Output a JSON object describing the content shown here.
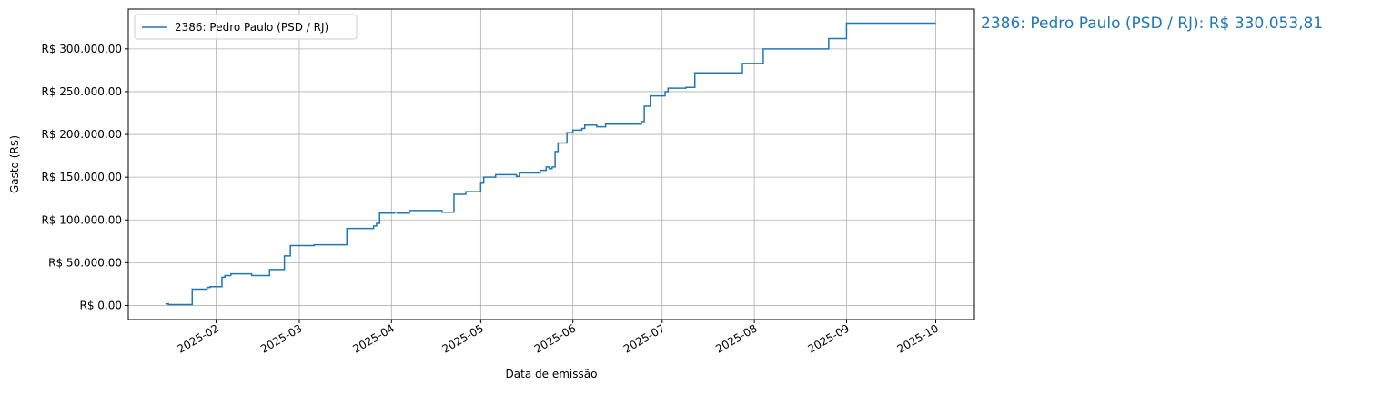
{
  "chart_data": {
    "type": "line",
    "step": "post",
    "xlabel": "Data de emissão",
    "ylabel": "Gasto (R$)",
    "annotation": "2386: Pedro Paulo (PSD / RJ): R$ 330.053,81",
    "grid": true,
    "legend": "upper left",
    "x": [
      15,
      16,
      24,
      29,
      30,
      34,
      35,
      37,
      44,
      50,
      55,
      57,
      65,
      76,
      85,
      86,
      87,
      92,
      93,
      97,
      108,
      112,
      116,
      121,
      122,
      126,
      133,
      134,
      141,
      143,
      144,
      145,
      146,
      147,
      150,
      152,
      155,
      156,
      160,
      163,
      175,
      176,
      178,
      183,
      184,
      190,
      193,
      209,
      216,
      238,
      244,
      274
    ],
    "series": [
      {
        "name": "2386: Pedro Paulo (PSD / RJ)",
        "color": "#1f77b4",
        "values": [
          2000,
          1000,
          19000,
          21000,
          22000,
          33000,
          35000,
          37000,
          35000,
          42000,
          58000,
          70000,
          71000,
          90000,
          93000,
          96000,
          108000,
          109000,
          108000,
          111000,
          109000,
          130000,
          133000,
          143000,
          150000,
          153000,
          151000,
          155000,
          158000,
          162000,
          160000,
          162000,
          180000,
          190000,
          202000,
          205000,
          207000,
          211000,
          209000,
          212000,
          215000,
          233000,
          245000,
          250000,
          254000,
          255000,
          272000,
          283000,
          300000,
          312000,
          330053.81,
          330053.81
        ]
      }
    ],
    "xlim": [
      2.5,
      287
    ],
    "xticks": [
      {
        "value": 32,
        "label": "2025-02"
      },
      {
        "value": 60,
        "label": "2025-03"
      },
      {
        "value": 91,
        "label": "2025-04"
      },
      {
        "value": 121,
        "label": "2025-05"
      },
      {
        "value": 152,
        "label": "2025-06"
      },
      {
        "value": 182,
        "label": "2025-07"
      },
      {
        "value": 213,
        "label": "2025-08"
      },
      {
        "value": 244,
        "label": "2025-09"
      },
      {
        "value": 274,
        "label": "2025-10"
      }
    ],
    "ylim": [
      -16503,
      346556
    ],
    "yticks": [
      {
        "value": 0,
        "label": "R$ 0,00"
      },
      {
        "value": 50000,
        "label": "R$ 50.000,00"
      },
      {
        "value": 100000,
        "label": "R$ 100.000,00"
      },
      {
        "value": 150000,
        "label": "R$ 150.000,00"
      },
      {
        "value": 200000,
        "label": "R$ 200.000,00"
      },
      {
        "value": 250000,
        "label": "R$ 250.000,00"
      },
      {
        "value": 300000,
        "label": "R$ 300.000,00"
      }
    ]
  }
}
